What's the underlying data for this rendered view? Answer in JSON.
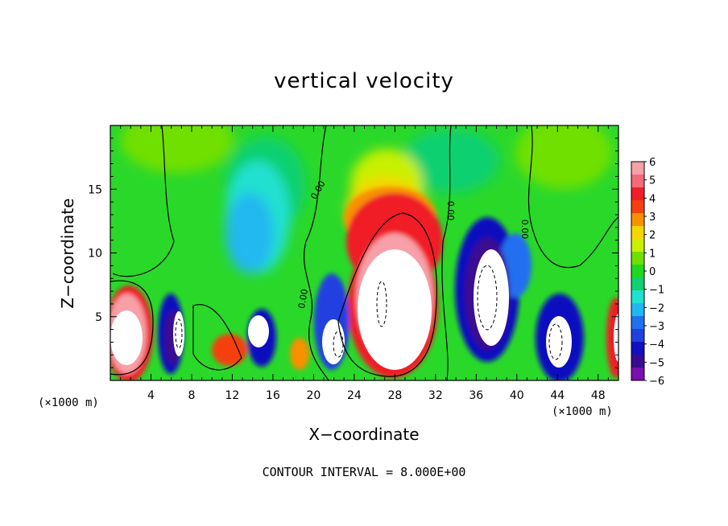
{
  "chart_data": {
    "type": "heatmap",
    "title": "vertical velocity",
    "xlabel": "X−coordinate",
    "ylabel": "Z−coordinate",
    "x_unit": "(×1000 m)",
    "y_unit": "(×1000 m)",
    "xlim": [
      0,
      50
    ],
    "ylim": [
      0,
      20
    ],
    "x_ticks": [
      4,
      8,
      12,
      16,
      20,
      24,
      28,
      32,
      36,
      40,
      44,
      48
    ],
    "y_ticks": [
      5,
      10,
      15
    ],
    "colorbar": {
      "min": -6,
      "max": 6,
      "labels": [
        "6",
        "5",
        "4",
        "3",
        "2",
        "1",
        "0",
        "−1",
        "−2",
        "−3",
        "−4",
        "−5",
        "−6"
      ],
      "colors": [
        "#f7a0a8",
        "#f46a78",
        "#f01e28",
        "#f54010",
        "#f89000",
        "#f6d600",
        "#c8f000",
        "#70e000",
        "#20d820",
        "#10d070",
        "#20e0d0",
        "#20b8f0",
        "#2070f0",
        "#2040e0",
        "#1010c0",
        "#3a0a90",
        "#7a10b0"
      ]
    },
    "contour_interval_text": "CONTOUR INTERVAL = 8.000E+00",
    "contour_labels": [
      "0.00",
      "0.00",
      "0.00",
      "0.00"
    ]
  }
}
